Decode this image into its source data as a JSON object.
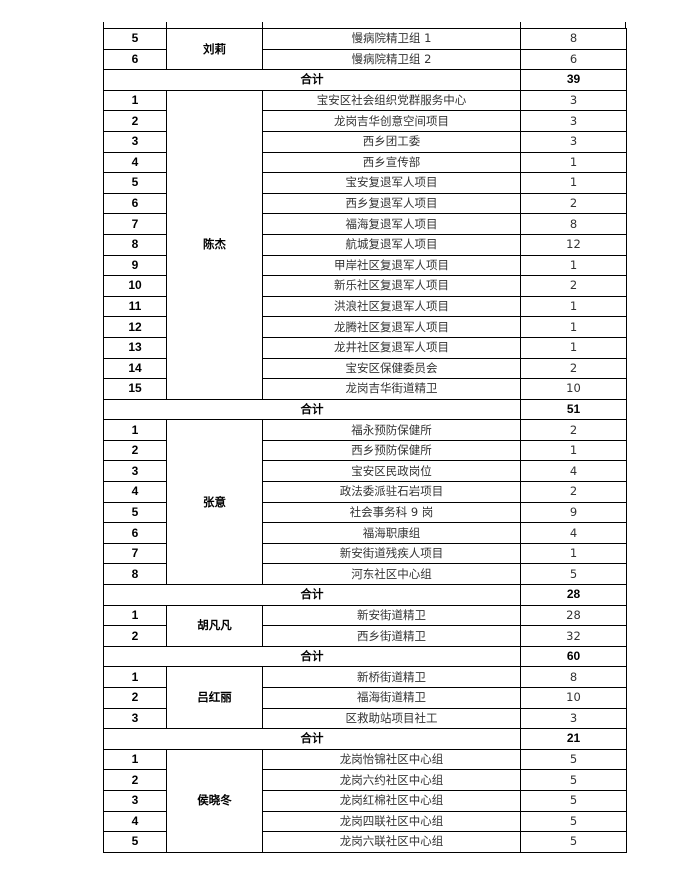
{
  "total_label": "合计",
  "groups": [
    {
      "name": "刘莉",
      "items": [
        {
          "no": "5",
          "project": "慢病院精卫组 1",
          "count": "8"
        },
        {
          "no": "6",
          "project": "慢病院精卫组 2",
          "count": "6"
        }
      ],
      "total": "39"
    },
    {
      "name": "陈杰",
      "items": [
        {
          "no": "1",
          "project": "宝安区社会组织党群服务中心",
          "count": "3"
        },
        {
          "no": "2",
          "project": "龙岗吉华创意空间项目",
          "count": "3"
        },
        {
          "no": "3",
          "project": "西乡团工委",
          "count": "3"
        },
        {
          "no": "4",
          "project": "西乡宣传部",
          "count": "1"
        },
        {
          "no": "5",
          "project": "宝安复退军人项目",
          "count": "1"
        },
        {
          "no": "6",
          "project": "西乡复退军人项目",
          "count": "2"
        },
        {
          "no": "7",
          "project": "福海复退军人项目",
          "count": "8"
        },
        {
          "no": "8",
          "project": "航城复退军人项目",
          "count": "12"
        },
        {
          "no": "9",
          "project": "甲岸社区复退军人项目",
          "count": "1"
        },
        {
          "no": "10",
          "project": "新乐社区复退军人项目",
          "count": "2"
        },
        {
          "no": "11",
          "project": "洪浪社区复退军人项目",
          "count": "1"
        },
        {
          "no": "12",
          "project": "龙腾社区复退军人项目",
          "count": "1"
        },
        {
          "no": "13",
          "project": "龙井社区复退军人项目",
          "count": "1"
        },
        {
          "no": "14",
          "project": "宝安区保健委员会",
          "count": "2"
        },
        {
          "no": "15",
          "project": "龙岗吉华街道精卫",
          "count": "10"
        }
      ],
      "total": "51"
    },
    {
      "name": "张意",
      "items": [
        {
          "no": "1",
          "project": "福永预防保健所",
          "count": "2"
        },
        {
          "no": "2",
          "project": "西乡预防保健所",
          "count": "1"
        },
        {
          "no": "3",
          "project": "宝安区民政岗位",
          "count": "4"
        },
        {
          "no": "4",
          "project": "政法委派驻石岩项目",
          "count": "2"
        },
        {
          "no": "5",
          "project": "社会事务科 9 岗",
          "count": "9"
        },
        {
          "no": "6",
          "project": "福海职康组",
          "count": "4"
        },
        {
          "no": "7",
          "project": "新安街道残疾人项目",
          "count": "1"
        },
        {
          "no": "8",
          "project": "河东社区中心组",
          "count": "5"
        }
      ],
      "total": "28"
    },
    {
      "name": "胡凡凡",
      "items": [
        {
          "no": "1",
          "project": "新安街道精卫",
          "count": "28"
        },
        {
          "no": "2",
          "project": "西乡街道精卫",
          "count": "32"
        }
      ],
      "total": "60"
    },
    {
      "name": "吕红丽",
      "items": [
        {
          "no": "1",
          "project": "新桥街道精卫",
          "count": "8"
        },
        {
          "no": "2",
          "project": "福海街道精卫",
          "count": "10"
        },
        {
          "no": "3",
          "project": "区救助站项目社工",
          "count": "3"
        }
      ],
      "total": "21"
    },
    {
      "name": "侯晓冬",
      "items": [
        {
          "no": "1",
          "project": "龙岗怡锦社区中心组",
          "count": "5"
        },
        {
          "no": "2",
          "project": "龙岗六约社区中心组",
          "count": "5"
        },
        {
          "no": "3",
          "project": "龙岗红棉社区中心组",
          "count": "5"
        },
        {
          "no": "4",
          "project": "龙岗四联社区中心组",
          "count": "5"
        },
        {
          "no": "5",
          "project": "龙岗六联社区中心组",
          "count": "5"
        }
      ]
    }
  ]
}
